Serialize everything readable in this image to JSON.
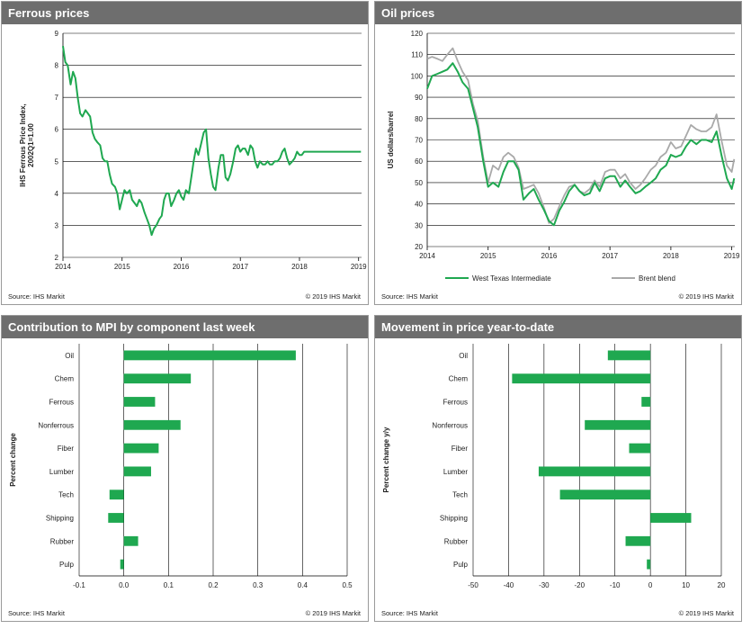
{
  "colors": {
    "green": "#1fa850",
    "grey": "#a9a9a9",
    "header_bg": "#6e6e6e",
    "grid": "#000000"
  },
  "panels": [
    {
      "title": "Ferrous prices",
      "source": "Source:  IHS Markit",
      "copyright": "© 2019  IHS Markit"
    },
    {
      "title": "Oil prices",
      "source": "Source:  IHS Markit",
      "copyright": "© 2019  IHS Markit"
    },
    {
      "title": "Contribution  to MPI by component last week",
      "source": "Source:  IHS Markit",
      "copyright": "© 2019  IHS Markit"
    },
    {
      "title": "Movement in price year-to-date",
      "source": "Source:  IHS Markit",
      "copyright": "© 2019  IHS Markit"
    }
  ],
  "chart_data": [
    {
      "type": "line",
      "title": "Ferrous prices",
      "ylabel": [
        "IHS Ferrous Price Index,",
        "2002Q1=1.00"
      ],
      "xlabel": "",
      "ylim": [
        2,
        9
      ],
      "xlim": [
        2014,
        2019.05
      ],
      "yticks": [
        "2",
        "3",
        "4",
        "5",
        "6",
        "7",
        "8",
        "9"
      ],
      "xticks": [
        "2014",
        "2015",
        "2016",
        "2017",
        "2018",
        "2019"
      ],
      "grid": "horizontal",
      "series": [
        {
          "color": "green",
          "x": [
            2014.0,
            2014.04,
            2014.08,
            2014.13,
            2014.17,
            2014.21,
            2014.25,
            2014.29,
            2014.33,
            2014.38,
            2014.42,
            2014.46,
            2014.5,
            2014.54,
            2014.58,
            2014.63,
            2014.67,
            2014.71,
            2014.75,
            2014.79,
            2014.83,
            2014.88,
            2014.92,
            2014.96,
            2015.0,
            2015.04,
            2015.08,
            2015.13,
            2015.17,
            2015.21,
            2015.25,
            2015.29,
            2015.33,
            2015.38,
            2015.42,
            2015.46,
            2015.5,
            2015.54,
            2015.58,
            2015.63,
            2015.67,
            2015.71,
            2015.75,
            2015.79,
            2015.83,
            2015.88,
            2015.92,
            2015.96,
            2016.0,
            2016.04,
            2016.08,
            2016.13,
            2016.17,
            2016.21,
            2016.25,
            2016.29,
            2016.33,
            2016.38,
            2016.42,
            2016.46,
            2016.5,
            2016.54,
            2016.58,
            2016.63,
            2016.67,
            2016.71,
            2016.75,
            2016.79,
            2016.83,
            2016.88,
            2016.92,
            2016.96,
            2017.0,
            2017.04,
            2017.08,
            2017.13,
            2017.17,
            2017.21,
            2017.25,
            2017.29,
            2017.33,
            2017.38,
            2017.42,
            2017.46,
            2017.5,
            2017.54,
            2017.58,
            2017.63,
            2017.67,
            2017.71,
            2017.75,
            2017.79,
            2017.83,
            2017.88,
            2017.92,
            2017.96,
            2018.0,
            2018.04,
            2018.08,
            2018.13,
            2018.17,
            2018.21,
            2018.25,
            2018.29,
            2018.33,
            2018.38,
            2018.42,
            2018.46,
            2018.5,
            2018.54,
            2018.58,
            2018.63,
            2018.67,
            2018.71,
            2018.75,
            2018.79,
            2018.83,
            2018.88,
            2018.92,
            2018.96,
            2019.0,
            2019.04
          ],
          "y": [
            8.6,
            8.1,
            8.0,
            7.4,
            7.8,
            7.6,
            7.0,
            6.5,
            6.4,
            6.6,
            6.5,
            6.4,
            5.9,
            5.7,
            5.6,
            5.5,
            5.1,
            5.0,
            5.0,
            4.6,
            4.3,
            4.2,
            4.0,
            3.5,
            3.8,
            4.1,
            4.0,
            4.1,
            3.8,
            3.7,
            3.6,
            3.8,
            3.7,
            3.4,
            3.2,
            3.0,
            2.7,
            2.9,
            3.0,
            3.2,
            3.3,
            3.8,
            4.0,
            4.0,
            3.6,
            3.8,
            4.0,
            4.1,
            3.9,
            3.8,
            4.1,
            4.0,
            4.5,
            5.0,
            5.4,
            5.2,
            5.5,
            5.9,
            6.0,
            5.1,
            4.6,
            4.2,
            4.1,
            4.8,
            5.2,
            5.2,
            4.5,
            4.4,
            4.6,
            5.0,
            5.4,
            5.5,
            5.3,
            5.4,
            5.4,
            5.2,
            5.5,
            5.4,
            5.0,
            4.8,
            5.0,
            4.9,
            4.9,
            5.0,
            4.9,
            4.9,
            5.0,
            5.0,
            5.1,
            5.3,
            5.4,
            5.1,
            4.9,
            5.0,
            5.1,
            5.3,
            5.2,
            5.2,
            5.3,
            5.3,
            5.3,
            5.3,
            5.3,
            5.3,
            5.3,
            5.3,
            5.3,
            5.3,
            5.3,
            5.3,
            5.3,
            5.3,
            5.3,
            5.3,
            5.3,
            5.3,
            5.3,
            5.3,
            5.3,
            5.3,
            5.3,
            5.3
          ]
        }
      ]
    },
    {
      "type": "line",
      "title": "Oil prices",
      "ylabel": [
        "US dollars/barrel"
      ],
      "xlabel": "",
      "ylim": [
        20,
        120
      ],
      "xlim": [
        2014,
        2019.05
      ],
      "yticks": [
        "20",
        "30",
        "40",
        "50",
        "60",
        "70",
        "80",
        "90",
        "100",
        "110",
        "120"
      ],
      "xticks": [
        "2014",
        "2015",
        "2016",
        "2017",
        "2018",
        "2019"
      ],
      "grid": "horizontal",
      "legend": "bottom",
      "series": [
        {
          "name": "West Texas Intermediate",
          "color": "green",
          "x": [
            2014.0,
            2014.08,
            2014.17,
            2014.25,
            2014.33,
            2014.42,
            2014.5,
            2014.58,
            2014.67,
            2014.75,
            2014.83,
            2014.92,
            2015.0,
            2015.08,
            2015.17,
            2015.25,
            2015.33,
            2015.42,
            2015.5,
            2015.58,
            2015.67,
            2015.75,
            2015.83,
            2015.92,
            2016.0,
            2016.08,
            2016.17,
            2016.25,
            2016.33,
            2016.42,
            2016.5,
            2016.58,
            2016.67,
            2016.75,
            2016.83,
            2016.92,
            2017.0,
            2017.08,
            2017.17,
            2017.25,
            2017.33,
            2017.42,
            2017.5,
            2017.58,
            2017.67,
            2017.75,
            2017.83,
            2017.92,
            2018.0,
            2018.08,
            2018.17,
            2018.25,
            2018.33,
            2018.42,
            2018.5,
            2018.58,
            2018.67,
            2018.75,
            2018.83,
            2018.92,
            2019.0,
            2019.04
          ],
          "y": [
            94,
            100,
            101,
            102,
            103,
            106,
            102,
            97,
            94,
            85,
            76,
            60,
            48,
            50,
            48,
            55,
            60,
            60,
            56,
            42,
            45,
            47,
            42,
            37,
            32,
            30,
            37,
            41,
            46,
            49,
            46,
            44,
            45,
            50,
            46,
            52,
            53,
            53,
            48,
            51,
            48,
            45,
            46,
            48,
            50,
            52,
            56,
            58,
            63,
            62,
            63,
            67,
            70,
            68,
            70,
            70,
            69,
            74,
            63,
            52,
            47,
            52
          ]
        },
        {
          "name": "Brent blend",
          "color": "grey",
          "x": [
            2014.0,
            2014.08,
            2014.17,
            2014.25,
            2014.33,
            2014.42,
            2014.5,
            2014.58,
            2014.67,
            2014.75,
            2014.83,
            2014.92,
            2015.0,
            2015.08,
            2015.17,
            2015.25,
            2015.33,
            2015.42,
            2015.5,
            2015.58,
            2015.67,
            2015.75,
            2015.83,
            2015.92,
            2016.0,
            2016.08,
            2016.17,
            2016.25,
            2016.33,
            2016.42,
            2016.5,
            2016.58,
            2016.67,
            2016.75,
            2016.83,
            2016.92,
            2017.0,
            2017.08,
            2017.17,
            2017.25,
            2017.33,
            2017.42,
            2017.5,
            2017.58,
            2017.67,
            2017.75,
            2017.83,
            2017.92,
            2018.0,
            2018.08,
            2018.17,
            2018.25,
            2018.33,
            2018.42,
            2018.5,
            2018.58,
            2018.67,
            2018.75,
            2018.83,
            2018.92,
            2019.0,
            2019.04
          ],
          "y": [
            108,
            109,
            108,
            107,
            110,
            113,
            107,
            102,
            98,
            87,
            79,
            62,
            50,
            58,
            56,
            62,
            64,
            62,
            57,
            47,
            48,
            49,
            45,
            38,
            31,
            33,
            39,
            44,
            48,
            49,
            46,
            45,
            47,
            51,
            48,
            55,
            56,
            56,
            52,
            54,
            50,
            47,
            49,
            52,
            56,
            58,
            62,
            64,
            69,
            66,
            67,
            72,
            77,
            75,
            74,
            74,
            76,
            82,
            70,
            58,
            55,
            61
          ]
        }
      ]
    },
    {
      "type": "bar",
      "orientation": "horizontal",
      "title": "Contribution  to MPI by component last week",
      "ylabel": [
        "Percent change"
      ],
      "xlim": [
        -0.1,
        0.5
      ],
      "xticks": [
        -0.1,
        0.0,
        0.1,
        0.2,
        0.3,
        0.4,
        0.5
      ],
      "xtick_labels": [
        "-0.1",
        "0.0",
        "0.1",
        "0.2",
        "0.3",
        "0.4",
        "0.5"
      ],
      "grid": "vertical",
      "categories": [
        "Oil",
        "Chem",
        "Ferrous",
        "Nonferrous",
        "Fiber",
        "Lumber",
        "Tech",
        "Shipping",
        "Rubber",
        "Pulp"
      ],
      "values": [
        0.385,
        0.15,
        0.07,
        0.127,
        0.078,
        0.061,
        -0.032,
        -0.035,
        0.032,
        -0.008
      ]
    },
    {
      "type": "bar",
      "orientation": "horizontal",
      "title": "Movement in price year-to-date",
      "ylabel": [
        "Percent change y/y"
      ],
      "xlim": [
        -50,
        20
      ],
      "xticks": [
        -50,
        -40,
        -30,
        -20,
        -10,
        0,
        10,
        20
      ],
      "xtick_labels": [
        "-50",
        "-40",
        "-30",
        "-20",
        "-10",
        "0",
        "10",
        "20"
      ],
      "grid": "vertical",
      "categories": [
        "Oil",
        "Chem",
        "Ferrous",
        "Nonferrous",
        "Fiber",
        "Lumber",
        "Tech",
        "Shipping",
        "Rubber",
        "Pulp"
      ],
      "values": [
        -12,
        -39,
        -2.5,
        -18.5,
        -6,
        -31.5,
        -25.5,
        11.5,
        -7,
        -1
      ]
    }
  ]
}
